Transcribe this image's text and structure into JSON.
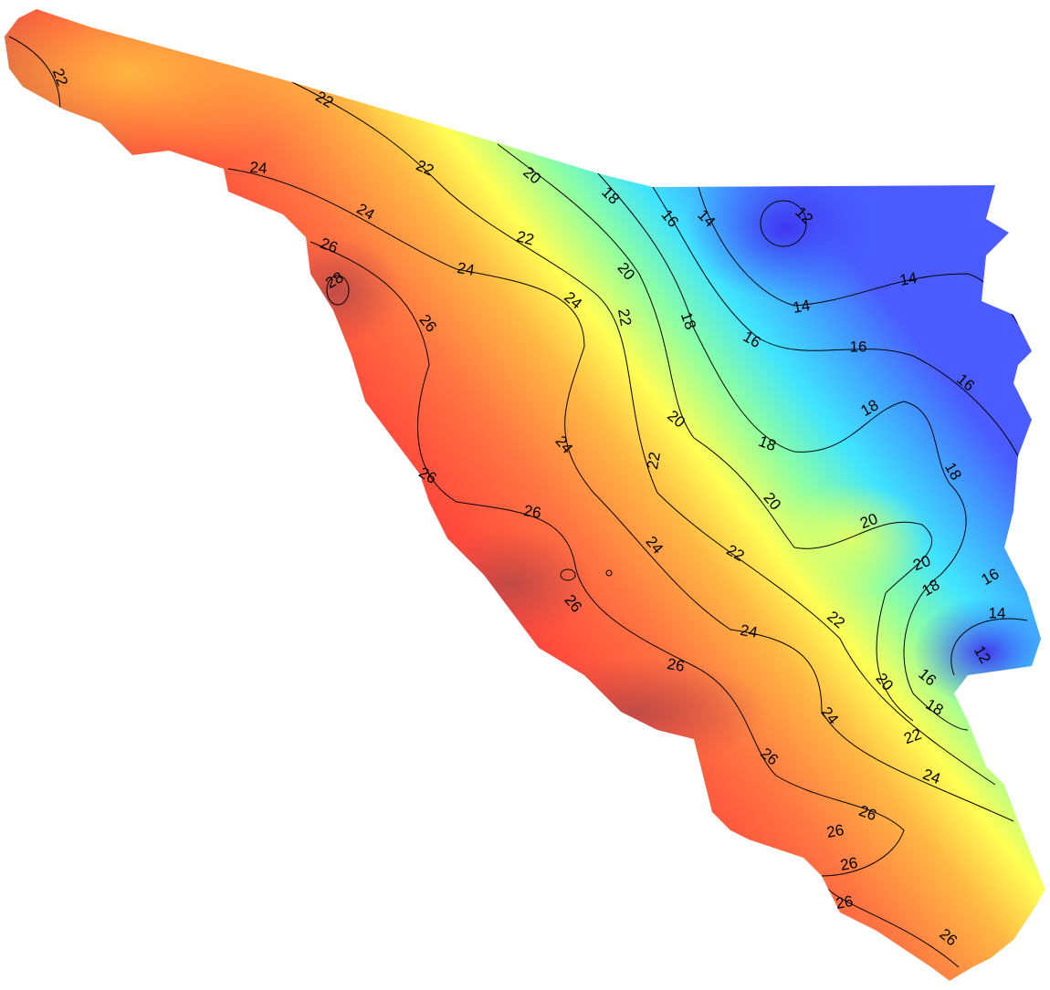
{
  "contour_labels": [
    22,
    22,
    22,
    22,
    22,
    22,
    22,
    22,
    22,
    20,
    20,
    20,
    20,
    20,
    20,
    20,
    18,
    18,
    18,
    18,
    18,
    18,
    18,
    16,
    16,
    16,
    16,
    16,
    16,
    14,
    14,
    14,
    14,
    12,
    12,
    24,
    24,
    24,
    24,
    24,
    24,
    24,
    24,
    24,
    26,
    28,
    26,
    26,
    26,
    26,
    26,
    26,
    26,
    26,
    26,
    26,
    26
  ]
}
